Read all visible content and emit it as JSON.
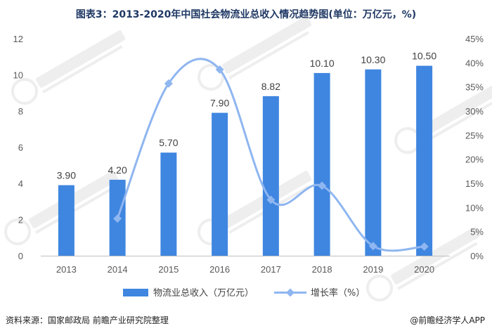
{
  "title": "图表3：2013-2020年中国社会物流业总收入情况趋势图(单位：万亿元，%)",
  "source": "资料来源：国家邮政局 前瞻产业研究院整理",
  "brand": "@前瞻经济学人APP",
  "colors": {
    "bar": "#3f86e0",
    "line": "#8fb6f0",
    "axis": "#bfbfbf"
  },
  "chart_data": {
    "type": "bar",
    "categories": [
      "2013",
      "2014",
      "2015",
      "2016",
      "2017",
      "2018",
      "2019",
      "2020"
    ],
    "series": [
      {
        "name": "物流业总收入（万亿元）",
        "type": "bar",
        "axis": "left",
        "values": [
          3.9,
          4.2,
          5.7,
          7.9,
          8.82,
          10.1,
          10.3,
          10.5
        ],
        "labels": [
          "3.90",
          "4.20",
          "5.70",
          "7.90",
          "8.82",
          "10.10",
          "10.30",
          "10.50"
        ]
      },
      {
        "name": "增长率（%）",
        "type": "line",
        "axis": "right",
        "values": [
          null,
          7.7,
          35.7,
          38.6,
          11.6,
          14.5,
          2.0,
          1.9
        ]
      }
    ],
    "yleft": {
      "min": 0,
      "max": 12,
      "ticks": [
        "0",
        "2",
        "4",
        "6",
        "8",
        "10",
        "12"
      ]
    },
    "yright": {
      "min": 0,
      "max": 45,
      "ticks": [
        "0%",
        "5%",
        "10%",
        "15%",
        "20%",
        "25%",
        "30%",
        "35%",
        "40%",
        "45%"
      ]
    },
    "legend_position": "bottom",
    "grid": false
  }
}
